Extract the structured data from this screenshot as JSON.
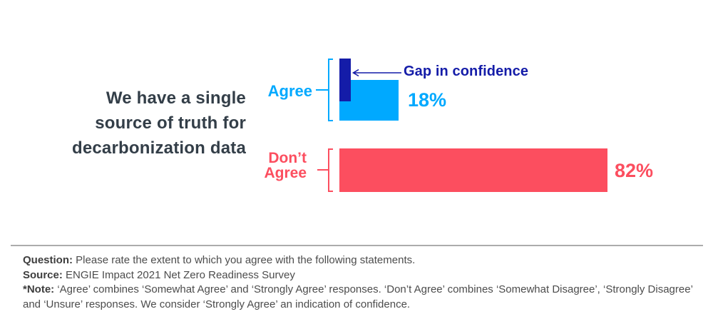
{
  "title": {
    "lines": [
      "We have a single",
      "source of truth for",
      "decarbonization data"
    ],
    "color": "#333E48"
  },
  "chart": {
    "bars": [
      {
        "label": "Agree",
        "value": 18,
        "value_label": "18%",
        "color": "#00A9FF"
      },
      {
        "label": "Don’t Agree",
        "value": 82,
        "value_label": "82%",
        "color": "#FC4E5F"
      }
    ],
    "gap": {
      "label": "Gap in confidence",
      "color": "#141CA8"
    }
  },
  "chart_data": {
    "type": "bar",
    "orientation": "horizontal",
    "title": "We have a single source of truth for decarbonization data",
    "categories": [
      "Agree",
      "Don’t Agree"
    ],
    "values": [
      18,
      82
    ],
    "value_labels": [
      "18%",
      "82%"
    ],
    "annotations": [
      "Gap in confidence"
    ],
    "xlim": [
      0,
      100
    ],
    "grid": false,
    "legend": false,
    "colors": {
      "agree": "#00A9FF",
      "dont_agree": "#FC4E5F",
      "gap_marker": "#141CA8"
    }
  },
  "footer": {
    "question_label": "Question:",
    "question_text": "Please rate the extent to which you agree with the following statements.",
    "source_label": "Source:",
    "source_text": "ENGIE Impact 2021 Net Zero Readiness Survey",
    "note_label": "*Note:",
    "note_text": "‘Agree’ combines ‘Somewhat Agree’ and ‘Strongly Agree’ responses. ‘Don’t Agree’ combines ‘Somewhat Disagree’, ‘Strongly Disagree’ and ‘Unsure’ responses. We consider ‘Strongly Agree’ an indication of confidence."
  }
}
